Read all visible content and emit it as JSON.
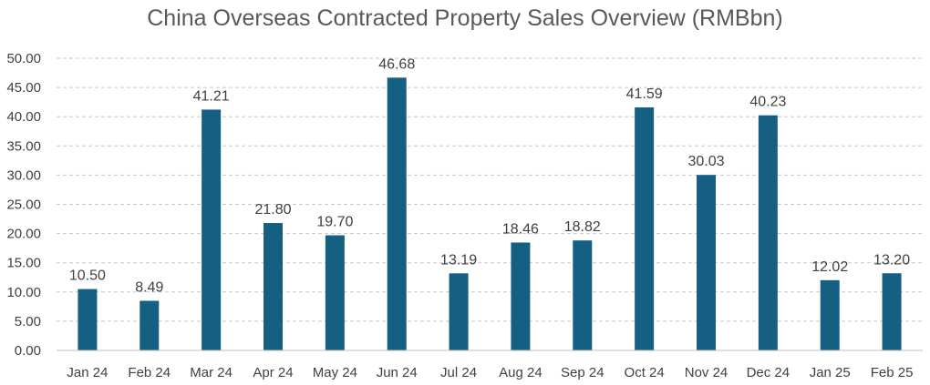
{
  "chart_data": {
    "type": "bar",
    "title": "China Overseas Contracted Property Sales Overview (RMBbn)",
    "xlabel": "",
    "ylabel": "",
    "categories": [
      "Jan 24",
      "Feb 24",
      "Mar 24",
      "Apr 24",
      "May 24",
      "Jun 24",
      "Jul 24",
      "Aug 24",
      "Sep 24",
      "Oct 24",
      "Nov 24",
      "Dec 24",
      "Jan 25",
      "Feb 25"
    ],
    "values": [
      10.5,
      8.49,
      41.21,
      21.8,
      19.7,
      46.68,
      13.19,
      18.46,
      18.82,
      41.59,
      30.03,
      40.23,
      12.02,
      13.2
    ],
    "value_labels": [
      "10.50",
      "8.49",
      "41.21",
      "21.80",
      "19.70",
      "46.68",
      "13.19",
      "18.46",
      "18.82",
      "41.59",
      "30.03",
      "40.23",
      "12.02",
      "13.20"
    ],
    "ylim": [
      0,
      50
    ],
    "yticks": [
      "0.00",
      "5.00",
      "10.00",
      "15.00",
      "20.00",
      "25.00",
      "30.00",
      "35.00",
      "40.00",
      "45.00",
      "50.00"
    ],
    "grid": true,
    "bar_color": "#155F83"
  }
}
